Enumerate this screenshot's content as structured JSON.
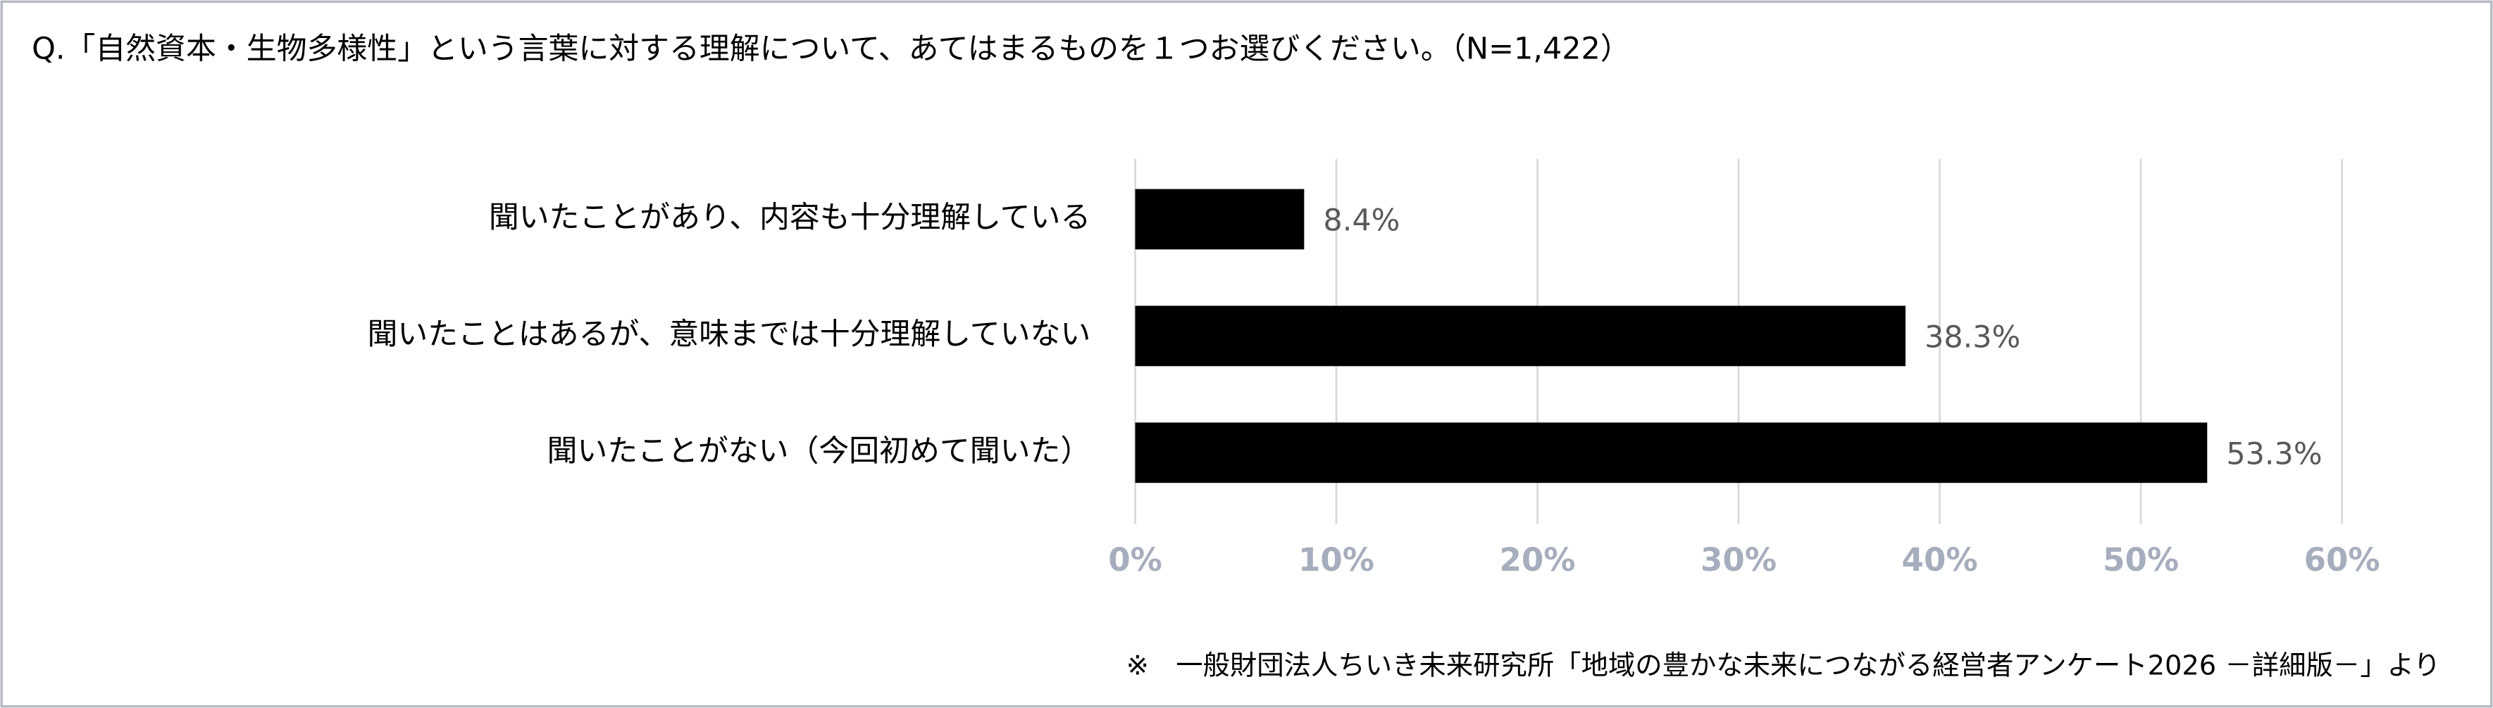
{
  "chart_data": {
    "type": "barh",
    "title": "Q.「自然資本・生物多様性」という言葉に対する理解について、あてはまるものを１つお選びください。（N=1,422）",
    "categories": [
      "聞いたことがあり、内容も十分理解している",
      "聞いたことはあるが、意味までは十分理解していない",
      "聞いたことがない（今回初めて聞いた）"
    ],
    "values": [
      8.4,
      38.3,
      53.3
    ],
    "value_labels": [
      "8.4%",
      "38.3%",
      "53.3%"
    ],
    "color": "#000000",
    "xlim": [
      0,
      60
    ],
    "xticks": [
      {
        "value": 0,
        "label": "0%"
      },
      {
        "value": 10,
        "label": "10%"
      },
      {
        "value": 20,
        "label": "20%"
      },
      {
        "value": 30,
        "label": "30%"
      },
      {
        "value": 40,
        "label": "40%"
      },
      {
        "value": 50,
        "label": "50%"
      },
      {
        "value": 60,
        "label": "60%"
      }
    ],
    "grid": true,
    "footnote": "※　一般財団法人ちいき未来研究所「地域の豊かな未来につながる経営者アンケート2026 －詳細版－」より"
  }
}
